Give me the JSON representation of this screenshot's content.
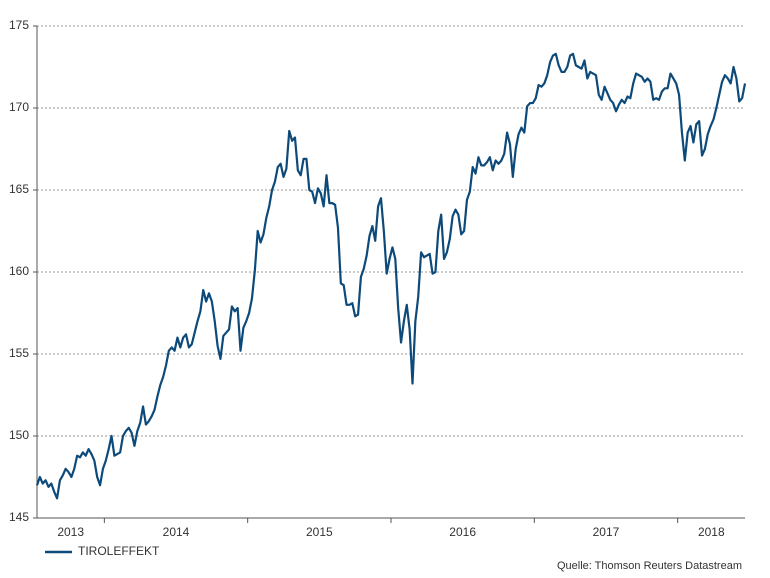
{
  "chart_data": {
    "type": "line",
    "source": "Quelle: Thomson Reuters Datastream",
    "ylim": [
      145,
      175
    ],
    "yticks": [
      145,
      150,
      155,
      160,
      165,
      170,
      175
    ],
    "grid": true,
    "xlim": [
      2013.53,
      2018.47
    ],
    "xticks": [
      {
        "value": 2013,
        "label": "2013"
      },
      {
        "value": 2014,
        "label": "2014"
      },
      {
        "value": 2015,
        "label": "2015"
      },
      {
        "value": 2016,
        "label": "2016"
      },
      {
        "value": 2017,
        "label": "2017"
      },
      {
        "value": 2018,
        "label": "2018"
      }
    ],
    "legend": "bottom-left",
    "x": [
      2013.53,
      2013.55,
      2013.57,
      2013.59,
      2013.61,
      2013.63,
      2013.65,
      2013.67,
      2013.69,
      2013.71,
      2013.73,
      2013.75,
      2013.77,
      2013.79,
      2013.81,
      2013.83,
      2013.85,
      2013.87,
      2013.89,
      2013.91,
      2013.93,
      2013.95,
      2013.97,
      2013.99,
      2014.01,
      2014.03,
      2014.05,
      2014.07,
      2014.09,
      2014.11,
      2014.13,
      2014.15,
      2014.17,
      2014.19,
      2014.21,
      2014.23,
      2014.25,
      2014.27,
      2014.29,
      2014.31,
      2014.33,
      2014.35,
      2014.37,
      2014.39,
      2014.41,
      2014.43,
      2014.45,
      2014.47,
      2014.49,
      2014.51,
      2014.53,
      2014.55,
      2014.57,
      2014.59,
      2014.61,
      2014.63,
      2014.65,
      2014.67,
      2014.69,
      2014.71,
      2014.73,
      2014.75,
      2014.77,
      2014.79,
      2014.81,
      2014.83,
      2014.85,
      2014.87,
      2014.89,
      2014.91,
      2014.93,
      2014.95,
      2014.97,
      2014.99,
      2015.01,
      2015.03,
      2015.05,
      2015.07,
      2015.09,
      2015.11,
      2015.13,
      2015.15,
      2015.17,
      2015.19,
      2015.21,
      2015.23,
      2015.25,
      2015.27,
      2015.29,
      2015.31,
      2015.33,
      2015.35,
      2015.37,
      2015.39,
      2015.41,
      2015.43,
      2015.45,
      2015.47,
      2015.49,
      2015.51,
      2015.53,
      2015.55,
      2015.57,
      2015.59,
      2015.61,
      2015.63,
      2015.65,
      2015.67,
      2015.69,
      2015.71,
      2015.73,
      2015.75,
      2015.77,
      2015.79,
      2015.81,
      2015.83,
      2015.85,
      2015.87,
      2015.89,
      2015.91,
      2015.93,
      2015.95,
      2015.97,
      2015.99,
      2016.01,
      2016.03,
      2016.05,
      2016.07,
      2016.09,
      2016.11,
      2016.13,
      2016.15,
      2016.17,
      2016.19,
      2016.21,
      2016.23,
      2016.25,
      2016.27,
      2016.29,
      2016.31,
      2016.33,
      2016.35,
      2016.37,
      2016.39,
      2016.41,
      2016.43,
      2016.45,
      2016.47,
      2016.49,
      2016.51,
      2016.53,
      2016.55,
      2016.57,
      2016.59,
      2016.61,
      2016.63,
      2016.65,
      2016.67,
      2016.69,
      2016.71,
      2016.73,
      2016.75,
      2016.77,
      2016.79,
      2016.81,
      2016.83,
      2016.85,
      2016.87,
      2016.89,
      2016.91,
      2016.93,
      2016.95,
      2016.97,
      2016.99,
      2017.01,
      2017.03,
      2017.05,
      2017.07,
      2017.09,
      2017.11,
      2017.13,
      2017.15,
      2017.17,
      2017.19,
      2017.21,
      2017.23,
      2017.25,
      2017.27,
      2017.29,
      2017.31,
      2017.33,
      2017.35,
      2017.37,
      2017.39,
      2017.41,
      2017.43,
      2017.45,
      2017.47,
      2017.49,
      2017.51,
      2017.53,
      2017.55,
      2017.57,
      2017.59,
      2017.61,
      2017.63,
      2017.65,
      2017.67,
      2017.69,
      2017.71,
      2017.73,
      2017.75,
      2017.77,
      2017.79,
      2017.81,
      2017.83,
      2017.85,
      2017.87,
      2017.89,
      2017.91,
      2017.93,
      2017.95,
      2017.97,
      2017.99,
      2018.01,
      2018.03,
      2018.05,
      2018.07,
      2018.09,
      2018.11,
      2018.13,
      2018.15,
      2018.17,
      2018.19,
      2018.21,
      2018.23,
      2018.25,
      2018.27,
      2018.29,
      2018.31,
      2018.33,
      2018.35,
      2018.37,
      2018.39,
      2018.41,
      2018.43,
      2018.45,
      2018.47
    ],
    "series": [
      {
        "name": "TIROLEFFEKT",
        "color": "#0d4a7a",
        "values": [
          147.0,
          147.5,
          147.1,
          147.3,
          146.9,
          147.1,
          146.6,
          146.2,
          147.3,
          147.6,
          148.0,
          147.8,
          147.5,
          148.0,
          148.8,
          148.7,
          149.0,
          148.8,
          149.2,
          148.9,
          148.5,
          147.5,
          147.0,
          148.0,
          148.5,
          149.2,
          150.0,
          148.8,
          148.9,
          149.0,
          150.0,
          150.3,
          150.5,
          150.2,
          149.4,
          150.3,
          150.8,
          151.8,
          150.7,
          150.9,
          151.2,
          151.6,
          152.4,
          153.1,
          153.6,
          154.3,
          155.2,
          155.4,
          155.2,
          156.0,
          155.4,
          156.0,
          156.2,
          155.4,
          155.6,
          156.3,
          157.0,
          157.6,
          158.9,
          158.2,
          158.7,
          158.2,
          157.0,
          155.5,
          154.7,
          156.1,
          156.3,
          156.5,
          157.9,
          157.6,
          157.8,
          155.2,
          156.6,
          157.0,
          157.5,
          158.4,
          160.1,
          162.5,
          161.8,
          162.3,
          163.3,
          164.0,
          165.0,
          165.5,
          166.4,
          166.6,
          165.8,
          166.3,
          168.6,
          168.0,
          168.2,
          166.2,
          165.9,
          166.9,
          166.9,
          165.0,
          164.9,
          164.2,
          165.1,
          164.8,
          164.0,
          165.9,
          164.2,
          164.2,
          164.1,
          162.7,
          159.3,
          159.2,
          158.0,
          158.0,
          158.1,
          157.3,
          157.4,
          159.7,
          160.2,
          161.0,
          162.2,
          162.8,
          161.9,
          164.0,
          164.5,
          162.5,
          159.9,
          160.8,
          161.5,
          160.8,
          157.8,
          155.7,
          157.0,
          158.0,
          156.5,
          153.2,
          157.0,
          158.5,
          161.2,
          160.9,
          161.0,
          161.1,
          159.9,
          160.0,
          162.5,
          163.5,
          160.8,
          161.2,
          162.0,
          163.4,
          163.8,
          163.5,
          162.3,
          162.5,
          164.4,
          164.9,
          166.4,
          166.0,
          167.0,
          166.5,
          166.5,
          166.7,
          167.0,
          166.2,
          166.8,
          166.6,
          166.8,
          167.2,
          168.5,
          167.8,
          165.8,
          167.5,
          168.4,
          168.8,
          168.5,
          170.1,
          170.3,
          170.3,
          170.6,
          171.4,
          171.3,
          171.5,
          172.0,
          172.8,
          173.2,
          173.3,
          172.6,
          172.2,
          172.2,
          172.5,
          173.2,
          173.3,
          172.6,
          172.5,
          172.4,
          172.9,
          171.8,
          172.2,
          172.1,
          172.0,
          170.8,
          170.5,
          171.3,
          170.9,
          170.5,
          170.3,
          169.8,
          170.2,
          170.5,
          170.3,
          170.7,
          170.6,
          171.5,
          172.1,
          172.0,
          171.9,
          171.6,
          171.8,
          171.6,
          170.5,
          170.6,
          170.5,
          171.0,
          171.2,
          171.2,
          172.1,
          171.8,
          171.5,
          170.8,
          168.5,
          166.8,
          168.5,
          168.9,
          167.9,
          169.0,
          169.2,
          167.1,
          167.5,
          168.4,
          168.9,
          169.3,
          170.0,
          170.8,
          171.6,
          172.0,
          171.8,
          171.5,
          172.5,
          171.8,
          170.4,
          170.6,
          171.5
        ]
      }
    ]
  }
}
